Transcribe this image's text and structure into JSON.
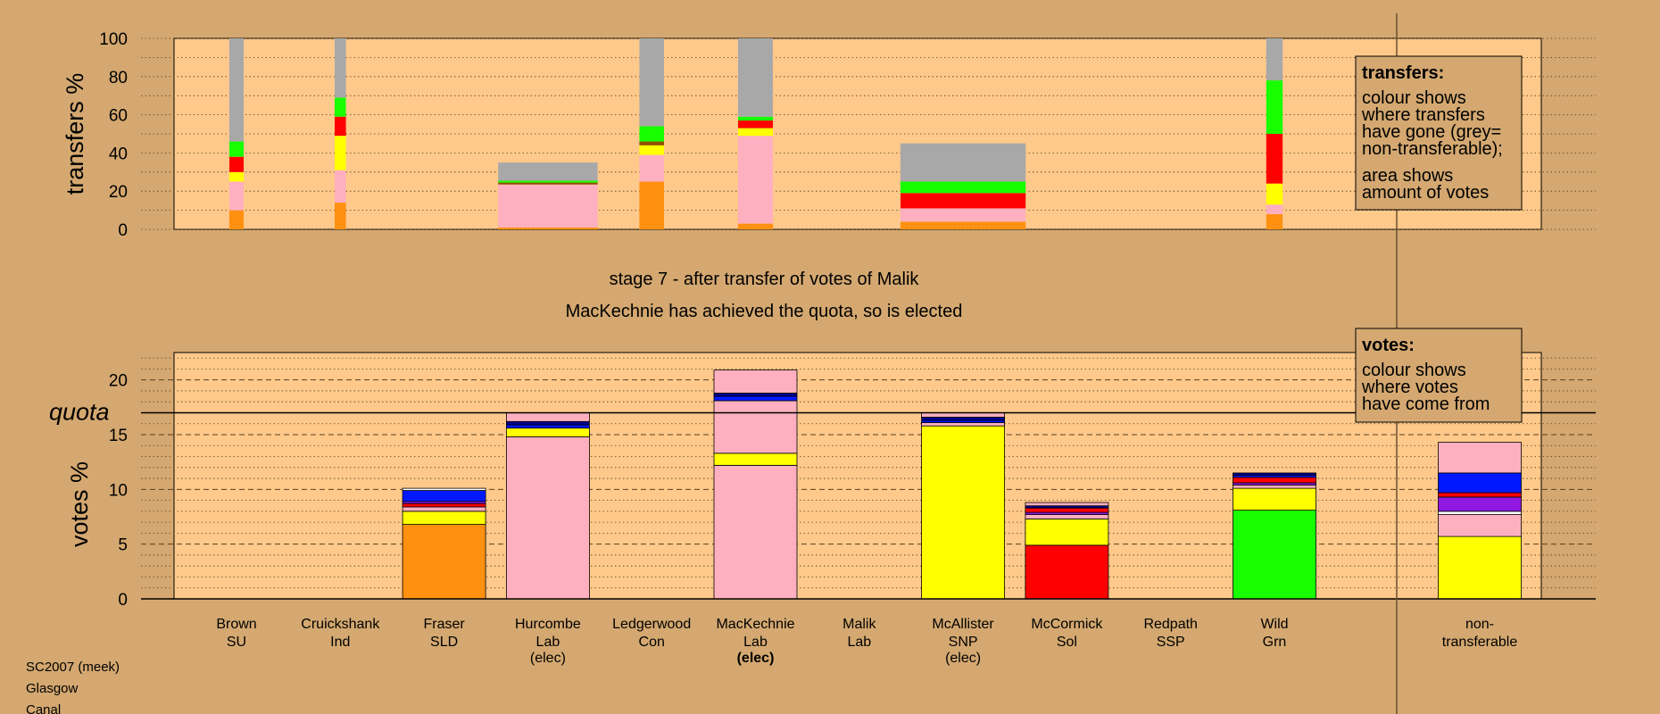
{
  "page": {
    "background": "#d4a870",
    "plot_background": "#fec98b"
  },
  "stage": {
    "title": "stage 7 - after transfer of votes of Malik",
    "subtitle": "MacKechnie has achieved the quota, so is elected"
  },
  "footer": [
    "SC2007 (meek)",
    "Glasgow",
    "Canal"
  ],
  "legend_transfers": {
    "title": "transfers:",
    "lines": [
      "colour shows",
      "where transfers",
      "have gone (grey=",
      "non-transferable);",
      "area shows",
      "amount of votes"
    ]
  },
  "legend_votes": {
    "title": "votes:",
    "lines": [
      "colour shows",
      "where votes",
      "have come from"
    ]
  },
  "candidates": [
    {
      "name": "Brown",
      "party": "SU",
      "elected": ""
    },
    {
      "name": "Cruickshank",
      "party": "Ind",
      "elected": ""
    },
    {
      "name": "Fraser",
      "party": "SLD",
      "elected": ""
    },
    {
      "name": "Hurcombe",
      "party": "Lab",
      "elected": "(elec)"
    },
    {
      "name": "Ledgerwood",
      "party": "Con",
      "elected": ""
    },
    {
      "name": "MacKechnie",
      "party": "Lab",
      "elected": "(elec)",
      "bold_elected": true
    },
    {
      "name": "Malik",
      "party": "Lab",
      "elected": ""
    },
    {
      "name": "McAllister",
      "party": "SNP",
      "elected": "(elec)"
    },
    {
      "name": "McCormick",
      "party": "Sol",
      "elected": ""
    },
    {
      "name": "Redpath",
      "party": "SSP",
      "elected": ""
    },
    {
      "name": "Wild",
      "party": "Grn",
      "elected": ""
    },
    {
      "name": "non-",
      "party": "transferable",
      "elected": ""
    }
  ],
  "colors": {
    "SU": "#ffb0c0",
    "Ind": "#ffff00",
    "SLD": "#ff9010",
    "Lab": "#ffb0c0",
    "Con": "#0018ff",
    "SNP": "#ffff00",
    "Sol": "#ff0000",
    "SSP": "#ff0000",
    "Grn": "#18ff00",
    "grey": "#a8a8a8",
    "purple": "#9018e0",
    "navy": "#000090",
    "brown": "#905000",
    "white": "#ffffff"
  },
  "chart_data": [
    {
      "type": "bar",
      "ylabel": "transfers %",
      "ylim": [
        0,
        100
      ],
      "yticks": [
        0,
        20,
        40,
        60,
        80,
        100
      ],
      "bars": [
        {
          "candidate": "Brown",
          "width_share": 0.07,
          "segments": [
            {
              "color": "#ff9010",
              "value": 10
            },
            {
              "color": "#ffb0c0",
              "value": 15
            },
            {
              "color": "#ffff00",
              "value": 5
            },
            {
              "color": "#ff0000",
              "value": 8
            },
            {
              "color": "#18ff00",
              "value": 8
            },
            {
              "color": "#a8a8a8",
              "value": 54
            }
          ]
        },
        {
          "candidate": "Cruickshank",
          "width_share": 0.04,
          "segments": [
            {
              "color": "#ff9010",
              "value": 14
            },
            {
              "color": "#ffb0c0",
              "value": 17
            },
            {
              "color": "#ffff00",
              "value": 18
            },
            {
              "color": "#ff0000",
              "value": 10
            },
            {
              "color": "#18ff00",
              "value": 10
            },
            {
              "color": "#a8a8a8",
              "value": 31
            }
          ]
        },
        {
          "candidate": "Hurcombe",
          "width_share": 0.9,
          "segments": [
            {
              "color": "#ff9010",
              "value": 1
            },
            {
              "color": "#ffb0c0",
              "value": 22.5
            },
            {
              "color": "#905000",
              "value": 1
            },
            {
              "color": "#18ff00",
              "value": 1
            },
            {
              "color": "#a8a8a8",
              "value": 9.5
            }
          ]
        },
        {
          "candidate": "Ledgerwood",
          "width_share": 0.17,
          "segments": [
            {
              "color": "#ff9010",
              "value": 25
            },
            {
              "color": "#ffb0c0",
              "value": 14
            },
            {
              "color": "#ffff00",
              "value": 5
            },
            {
              "color": "#905000",
              "value": 2
            },
            {
              "color": "#18ff00",
              "value": 8
            },
            {
              "color": "#a8a8a8",
              "value": 46
            }
          ]
        },
        {
          "candidate": "MacKechnie",
          "width_share": 0.27,
          "segments": [
            {
              "color": "#ff9010",
              "value": 3
            },
            {
              "color": "#ffb0c0",
              "value": 46
            },
            {
              "color": "#ffff00",
              "value": 4
            },
            {
              "color": "#ff0000",
              "value": 4
            },
            {
              "color": "#18ff00",
              "value": 2
            },
            {
              "color": "#a8a8a8",
              "value": 41
            }
          ]
        },
        {
          "candidate": "McAllister",
          "width_share": 1.15,
          "segments": [
            {
              "color": "#ff9010",
              "value": 4
            },
            {
              "color": "#ffb0c0",
              "value": 7
            },
            {
              "color": "#ff0000",
              "value": 8
            },
            {
              "color": "#18ff00",
              "value": 6
            },
            {
              "color": "#a8a8a8",
              "value": 20
            }
          ]
        },
        {
          "candidate": "Wild",
          "width_share": 0.09,
          "segments": [
            {
              "color": "#ff9010",
              "value": 8
            },
            {
              "color": "#ffb0c0",
              "value": 5
            },
            {
              "color": "#ffff00",
              "value": 11
            },
            {
              "color": "#ff0000",
              "value": 26
            },
            {
              "color": "#18ff00",
              "value": 28
            },
            {
              "color": "#a8a8a8",
              "value": 22
            }
          ]
        }
      ]
    },
    {
      "type": "bar",
      "ylabel": "votes %",
      "ylim": [
        0,
        22.5
      ],
      "yticks": [
        0,
        5,
        10,
        15,
        20
      ],
      "quota": 17.0,
      "quota_label": "quota",
      "bars": [
        {
          "candidate": "Fraser",
          "segments": [
            {
              "color": "#ff9010",
              "value": 6.8
            },
            {
              "color": "#ffff00",
              "value": 1.2
            },
            {
              "color": "#ffb0c0",
              "value": 0.4
            },
            {
              "color": "#ff0000",
              "value": 0.3
            },
            {
              "color": "#9018e0",
              "value": 0.2
            },
            {
              "color": "#0018ff",
              "value": 1.0
            },
            {
              "color": "#ffffff",
              "value": 0.2
            }
          ]
        },
        {
          "candidate": "Hurcombe",
          "segments": [
            {
              "color": "#ffb0c0",
              "value": 14.8
            },
            {
              "color": "#ffff00",
              "value": 0.8
            },
            {
              "color": "#0018ff",
              "value": 0.3
            },
            {
              "color": "#000090",
              "value": 0.3
            },
            {
              "color": "#ffb0c0",
              "value": 0.8
            }
          ]
        },
        {
          "candidate": "MacKechnie",
          "segments": [
            {
              "color": "#ffb0c0",
              "value": 12.2
            },
            {
              "color": "#ffff00",
              "value": 1.1
            },
            {
              "color": "#ffb0c0",
              "value": 4.8
            },
            {
              "color": "#0018ff",
              "value": 0.4
            },
            {
              "color": "#000090",
              "value": 0.3
            },
            {
              "color": "#ffb0c0",
              "value": 2.1
            }
          ]
        },
        {
          "candidate": "McAllister",
          "segments": [
            {
              "color": "#ffff00",
              "value": 15.8
            },
            {
              "color": "#ffb0c0",
              "value": 0.3
            },
            {
              "color": "#0018ff",
              "value": 0.2
            },
            {
              "color": "#000090",
              "value": 0.3
            },
            {
              "color": "#ffb0c0",
              "value": 0.4
            }
          ]
        },
        {
          "candidate": "McCormick",
          "segments": [
            {
              "color": "#ff0000",
              "value": 4.9
            },
            {
              "color": "#ffff00",
              "value": 2.4
            },
            {
              "color": "#ffb0c0",
              "value": 0.4
            },
            {
              "color": "#9018e0",
              "value": 0.2
            },
            {
              "color": "#ff0000",
              "value": 0.4
            },
            {
              "color": "#000090",
              "value": 0.2
            },
            {
              "color": "#ffb0c0",
              "value": 0.3
            }
          ]
        },
        {
          "candidate": "Wild",
          "segments": [
            {
              "color": "#18ff00",
              "value": 8.1
            },
            {
              "color": "#ffff00",
              "value": 2.0
            },
            {
              "color": "#ffb0c0",
              "value": 0.3
            },
            {
              "color": "#9018e0",
              "value": 0.2
            },
            {
              "color": "#ff0000",
              "value": 0.5
            },
            {
              "color": "#0018ff",
              "value": 0.2
            },
            {
              "color": "#000090",
              "value": 0.2
            }
          ]
        },
        {
          "candidate": "non-",
          "segments": [
            {
              "color": "#ffff00",
              "value": 5.7
            },
            {
              "color": "#ffb0c0",
              "value": 2.0
            },
            {
              "color": "#ffffff",
              "value": 0.3
            },
            {
              "color": "#9018e0",
              "value": 1.3
            },
            {
              "color": "#ff0000",
              "value": 0.4
            },
            {
              "color": "#0018ff",
              "value": 1.8
            },
            {
              "color": "#ffb0c0",
              "value": 2.8
            }
          ]
        }
      ]
    }
  ]
}
